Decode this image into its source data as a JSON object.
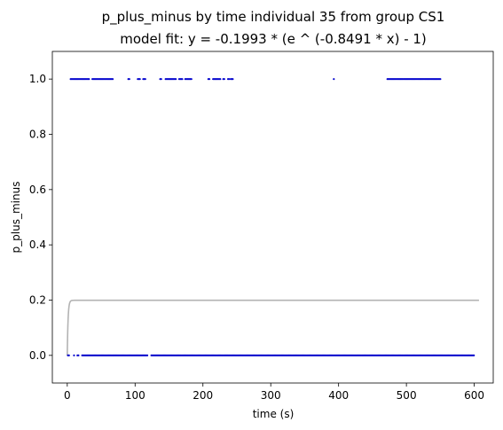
{
  "chart_data": {
    "type": "scatter",
    "title": "p_plus_minus by time individual 35 from group CS1",
    "subtitle": "model fit: y = -0.1993 * (e ^ (-0.8491 * x) - 1)",
    "xlabel": "time (s)",
    "ylabel": "p_plus_minus",
    "xlim": [
      -22,
      628
    ],
    "ylim": [
      -0.1,
      1.1
    ],
    "xticks": [
      0,
      100,
      200,
      300,
      400,
      500,
      600
    ],
    "yticks": [
      0.0,
      0.2,
      0.4,
      0.6,
      0.8,
      1.0
    ],
    "xtick_labels": [
      "0",
      "100",
      "200",
      "300",
      "400",
      "500",
      "600"
    ],
    "ytick_labels": [
      "0.0",
      "0.2",
      "0.4",
      "0.6",
      "0.8",
      "1.0"
    ],
    "grid": false,
    "point_color": "#0000cc",
    "fit_color": "#b3b3b3",
    "fit": {
      "a": -0.1993,
      "b": -0.8491,
      "x_range": [
        0,
        607
      ]
    },
    "series": [
      {
        "values_y": 1.0,
        "x_ranges": [
          [
            5,
            33
          ],
          [
            37,
            68
          ],
          [
            90,
            92
          ],
          [
            104,
            108
          ],
          [
            112,
            116
          ],
          [
            137,
            139
          ],
          [
            145,
            161
          ],
          [
            165,
            170
          ],
          [
            174,
            184
          ],
          [
            208,
            210
          ],
          [
            215,
            226
          ],
          [
            230,
            232
          ],
          [
            237,
            239
          ],
          [
            241,
            244
          ],
          [
            393,
            394
          ],
          [
            472,
            550
          ]
        ]
      },
      {
        "values_y": 0.0,
        "x_ranges": [
          [
            1,
            3
          ],
          [
            10,
            11
          ],
          [
            15,
            17
          ],
          [
            22,
            119
          ],
          [
            124,
            600
          ]
        ]
      }
    ]
  }
}
